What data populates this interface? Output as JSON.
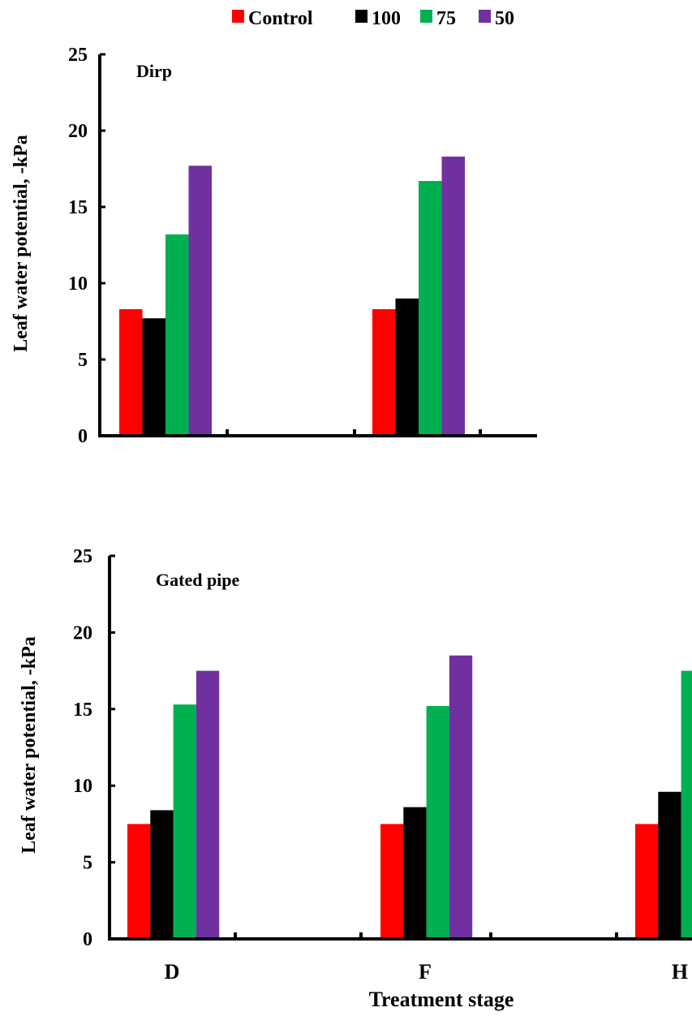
{
  "legend": [
    {
      "label": "Control",
      "color": "#ff0000"
    },
    {
      "label": "100",
      "color": "#000000"
    },
    {
      "label": "75",
      "color": "#00b050"
    },
    {
      "label": "50",
      "color": "#7030a0"
    }
  ],
  "chart_data": [
    {
      "type": "bar",
      "title": "Dirp",
      "ylabel": "Leaf water potential, -kPa",
      "xlabel": "",
      "ylim": [
        0,
        25
      ],
      "yticks": [
        "0",
        "5",
        "10",
        "15",
        "20",
        "25"
      ],
      "categories": [
        "",
        ""
      ],
      "series": [
        {
          "name": "Control",
          "color": "#ff0000",
          "values": [
            8.3,
            8.3
          ]
        },
        {
          "name": "100",
          "color": "#000000",
          "values": [
            7.7,
            9.0
          ]
        },
        {
          "name": "75",
          "color": "#00b050",
          "values": [
            13.2,
            16.7
          ]
        },
        {
          "name": "50",
          "color": "#7030a0",
          "values": [
            17.7,
            18.3
          ]
        }
      ]
    },
    {
      "type": "bar",
      "title": "Gated pipe",
      "ylabel": "Leaf water potential, -kPa",
      "xlabel": "Treatment stage",
      "ylim": [
        0,
        25
      ],
      "yticks": [
        "0",
        "5",
        "10",
        "15",
        "20",
        "25"
      ],
      "categories": [
        "D",
        "F",
        "H"
      ],
      "series": [
        {
          "name": "Control",
          "color": "#ff0000",
          "values": [
            7.5,
            7.5,
            7.5
          ]
        },
        {
          "name": "100",
          "color": "#000000",
          "values": [
            8.4,
            8.6,
            9.6
          ]
        },
        {
          "name": "75",
          "color": "#00b050",
          "values": [
            15.3,
            15.2,
            17.5
          ]
        },
        {
          "name": "50",
          "color": "#7030a0",
          "values": [
            17.5,
            18.5,
            null
          ]
        }
      ]
    }
  ]
}
